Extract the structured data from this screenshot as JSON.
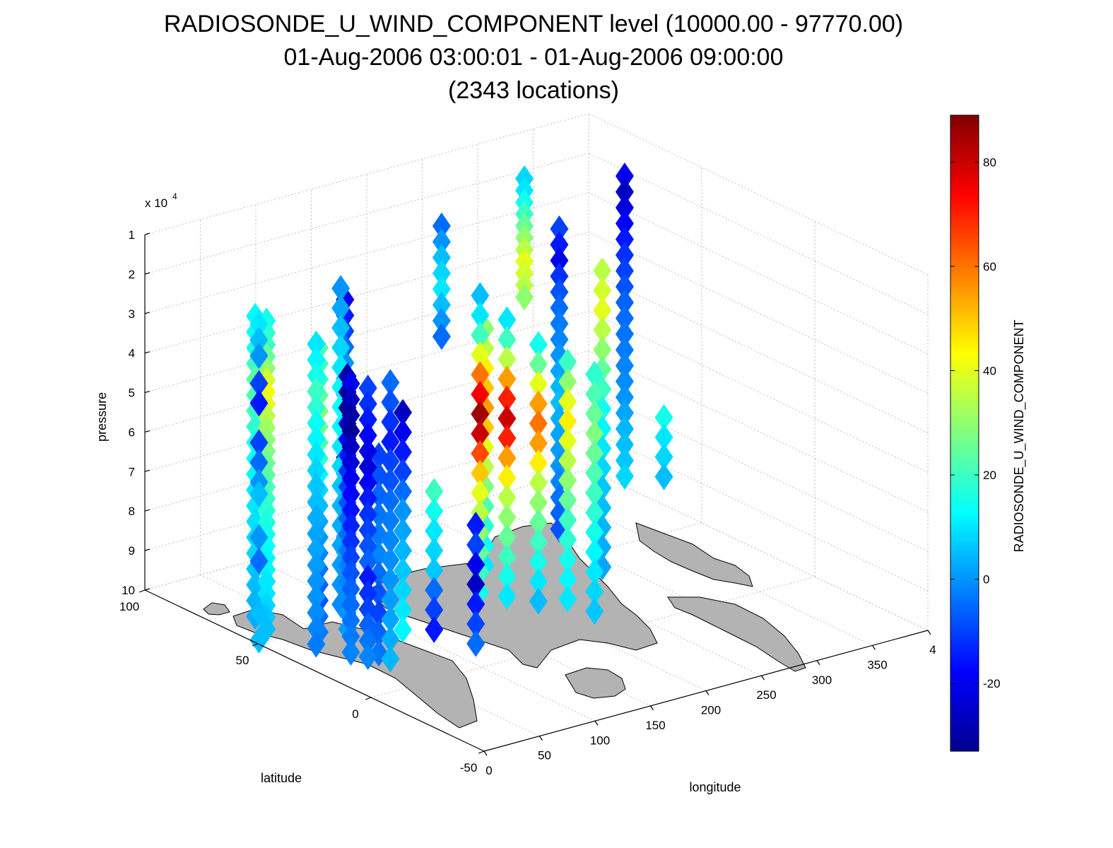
{
  "chart_data": {
    "type": "scatter",
    "title": "RADIOSONDE_U_WIND_COMPONENT level (10000.00 - 97770.00)",
    "subtitle": "01-Aug-2006 03:00:01 - 01-Aug-2006 09:00:00",
    "subtitle2": "(2343 locations)",
    "xlabel": "longitude",
    "ylabel": "latitude",
    "zlabel": "pressure",
    "z_multiplier": "x 10",
    "z_multiplier_exp": "4",
    "colorbar_label": "RADIOSONDE_U_WIND_COMPONENT",
    "colormap": "jet",
    "clim": [
      -33,
      89
    ],
    "xlim": [
      0,
      400
    ],
    "ylim": [
      -50,
      100
    ],
    "zlim": [
      1,
      10
    ],
    "z_reversed": true,
    "x_ticks": [
      "0",
      "50",
      "100",
      "150",
      "200",
      "250",
      "300",
      "350",
      "4"
    ],
    "y_ticks": [
      "-50",
      "0",
      "50",
      "100"
    ],
    "z_ticks": [
      "1",
      "2",
      "3",
      "4",
      "5",
      "6",
      "7",
      "8",
      "9",
      "10"
    ],
    "colorbar_ticks": [
      "-20",
      "0",
      "20",
      "40",
      "60",
      "80"
    ],
    "grid": true,
    "marker": "diamond",
    "stations": [
      {
        "lon": 5,
        "lat": 52,
        "p": [
          2,
          2.4,
          2.8,
          3.5,
          4,
          5,
          5.5,
          6,
          6.3,
          7.4,
          8,
          9.3,
          10
        ],
        "u": [
          10,
          5,
          0,
          -10,
          -15,
          -10,
          -5,
          0,
          5,
          0,
          -5,
          5,
          5
        ]
      },
      {
        "lon": 18,
        "lat": 55,
        "p": [
          2.1,
          2.4,
          2.7,
          3,
          3.3,
          3.6,
          3.9,
          4.2,
          4.5,
          4.8,
          5.1,
          5.4,
          5.7,
          6,
          6.3,
          6.6,
          6.9,
          7.2,
          7.5,
          7.8,
          8.1,
          8.4,
          8.7,
          9,
          9.3,
          9.6,
          9.9
        ],
        "u": [
          15,
          18,
          20,
          25,
          30,
          38,
          42,
          40,
          35,
          32,
          30,
          28,
          26,
          24,
          22,
          20,
          18,
          16,
          15,
          14,
          12,
          12,
          10,
          10,
          8,
          6,
          5
        ]
      },
      {
        "lon": 22,
        "lat": 62,
        "p": [
          2.2,
          2.6,
          3,
          3.4,
          3.8,
          4.2,
          4.6,
          5,
          5.4,
          5.8,
          6.2,
          6.6,
          7,
          7.4,
          7.8,
          8.2,
          8.6,
          9,
          9.4,
          9.8
        ],
        "u": [
          12,
          14,
          16,
          20,
          24,
          22,
          20,
          18,
          16,
          14,
          12,
          10,
          10,
          9,
          8,
          8,
          6,
          5,
          4,
          3
        ]
      },
      {
        "lon": 28,
        "lat": 38,
        "p": [
          2.3,
          2.7,
          3.1,
          3.5,
          3.9,
          4.3,
          4.7,
          5.1,
          5.5,
          5.9,
          6.3,
          6.7,
          7.1,
          7.5,
          7.9,
          8.3,
          8.7,
          9.1,
          9.5,
          9.9
        ],
        "u": [
          10,
          12,
          15,
          20,
          18,
          14,
          12,
          10,
          8,
          6,
          5,
          3,
          2,
          2,
          1,
          0,
          0,
          -1,
          -2,
          -3
        ]
      },
      {
        "lon": 35,
        "lat": 40,
        "p": [
          2.5,
          2.9,
          3.3,
          3.7,
          4.1,
          4.5,
          4.9,
          5.3,
          5.7,
          6.1,
          6.5,
          6.9,
          7.3,
          7.7,
          8.1,
          8.5,
          8.9,
          9.3,
          9.7
        ],
        "u": [
          22,
          20,
          18,
          24,
          28,
          26,
          22,
          18,
          12,
          8,
          5,
          2,
          0,
          -2,
          -4,
          -6,
          -8,
          -5,
          -3
        ]
      },
      {
        "lon": 38,
        "lat": 20,
        "p": [
          3,
          3.4,
          3.8,
          4.2,
          4.6,
          5,
          5.4,
          5.8,
          6.2,
          6.6,
          7,
          7.4,
          7.8,
          8.2,
          8.6,
          9,
          9.4,
          9.8
        ],
        "u": [
          -10,
          -12,
          -15,
          -18,
          -20,
          -22,
          -18,
          -15,
          -12,
          -10,
          -8,
          -6,
          -15,
          -12,
          -10,
          -6,
          -4,
          -2
        ]
      },
      {
        "lon": 43,
        "lat": 30,
        "p": [
          3.2,
          3.6,
          4,
          4.4,
          4.8,
          5.2,
          5.6,
          6,
          6.4,
          6.8,
          7.2,
          7.6,
          8,
          8.4,
          8.8,
          9.2,
          9.6,
          10
        ],
        "u": [
          -20,
          -25,
          -28,
          -30,
          -25,
          -22,
          -20,
          -18,
          -16,
          -14,
          -12,
          -10,
          -8,
          -6,
          -5,
          -4,
          -3,
          -2
        ]
      },
      {
        "lon": 50,
        "lat": 35,
        "p": [
          3.2,
          3.6,
          4,
          4.4,
          4.8,
          5.2,
          5.6,
          6,
          6.4,
          6.8,
          7.2,
          7.6,
          8,
          8.4,
          8.8,
          9.2,
          9.6
        ],
        "u": [
          -28,
          -30,
          -32,
          -25,
          -20,
          -15,
          -12,
          -10,
          -8,
          -6,
          -5,
          -4,
          -3,
          -2,
          -1,
          0,
          1
        ]
      },
      {
        "lon": 48,
        "lat": 15,
        "p": [
          2.8,
          3.3,
          3.8,
          4.3,
          4.8,
          5.3,
          5.8,
          6.3,
          6.8,
          7.3,
          7.8,
          8.3,
          8.8,
          9.3,
          9.8
        ],
        "u": [
          -5,
          -8,
          -12,
          -15,
          -10,
          -8,
          -5,
          -3,
          -2,
          -1,
          0,
          1,
          2,
          3,
          4
        ]
      },
      {
        "lon": 58,
        "lat": 25,
        "p": [
          5,
          5.5,
          6,
          6.5,
          7,
          7.5,
          8,
          8.5,
          9,
          9.5,
          10
        ],
        "u": [
          -10,
          -8,
          -6,
          -4,
          -3,
          -2,
          -5,
          -8,
          -10,
          -6,
          -4
        ]
      },
      {
        "lon": 95,
        "lat": 60,
        "p": [
          2,
          2.5,
          3,
          3.5,
          4,
          4.5,
          5,
          5.5,
          6,
          6.5,
          7,
          7.5,
          8,
          8.5,
          9,
          9.5,
          10
        ],
        "u": [
          0,
          2,
          5,
          8,
          10,
          12,
          14,
          12,
          10,
          8,
          6,
          4,
          3,
          2,
          1,
          0,
          -1
        ]
      },
      {
        "lon": 103,
        "lat": 62,
        "p": [
          2.4,
          2.8,
          3.2,
          3.6,
          4,
          4.4,
          4.8,
          5.2,
          5.6,
          6,
          6.4,
          6.8,
          7.2,
          7.6,
          8,
          8.4,
          8.8,
          9.2,
          9.6
        ],
        "u": [
          -20,
          -15,
          -10,
          -5,
          0,
          5,
          -5,
          -10,
          -15,
          -20,
          -25,
          -10,
          -5,
          0,
          5,
          3,
          2,
          1,
          0
        ]
      },
      {
        "lon": 100,
        "lat": 35,
        "p": [
          4.5,
          5,
          5.5,
          6,
          6.5,
          7,
          7.5,
          8,
          8.5,
          9,
          9.5,
          10
        ],
        "u": [
          -25,
          -20,
          -15,
          -10,
          -5,
          0,
          2,
          4,
          6,
          8,
          10,
          12
        ]
      },
      {
        "lon": 118,
        "lat": 30,
        "p": [
          6.5,
          7,
          7.5,
          8,
          8.5,
          9,
          9.5,
          10
        ],
        "u": [
          20,
          15,
          10,
          8,
          6,
          -5,
          -10,
          -15
        ]
      },
      {
        "lon": 125,
        "lat": 15,
        "p": [
          7,
          7.5,
          8,
          8.5,
          9,
          9.5,
          10
        ],
        "u": [
          -15,
          -10,
          -20,
          -25,
          -15,
          -10,
          -5
        ]
      },
      {
        "lon": 190,
        "lat": 62,
        "p": [
          1.2,
          1.6,
          2,
          2.4,
          2.8,
          3.2,
          3.6,
          4
        ],
        "u": [
          -5,
          0,
          5,
          8,
          10,
          5,
          0,
          -5
        ]
      },
      {
        "lon": 190,
        "lat": 45,
        "p": [
          2.5,
          3,
          3.5,
          4,
          4.5,
          5,
          5.5,
          6,
          6.5,
          7,
          7.5,
          8,
          8.5,
          9,
          9.5,
          10
        ],
        "u": [
          5,
          10,
          20,
          40,
          60,
          75,
          85,
          80,
          65,
          50,
          40,
          35,
          30,
          25,
          20,
          15
        ]
      },
      {
        "lon": 200,
        "lat": 38,
        "p": [
          3,
          3.5,
          4,
          4.5,
          5,
          5.5,
          6,
          6.5,
          7,
          7.5,
          8,
          8.5,
          9,
          9.5,
          10
        ],
        "u": [
          10,
          20,
          35,
          55,
          70,
          80,
          70,
          55,
          45,
          35,
          30,
          25,
          20,
          15,
          10
        ]
      },
      {
        "lon": 212,
        "lat": 30,
        "p": [
          3.5,
          4,
          4.5,
          5,
          5.5,
          6,
          6.5,
          7,
          7.5,
          8,
          8.5,
          9,
          9.5,
          10
        ],
        "u": [
          15,
          25,
          40,
          55,
          60,
          55,
          45,
          35,
          30,
          25,
          20,
          15,
          10,
          5
        ]
      },
      {
        "lon": 222,
        "lat": 22,
        "p": [
          3.8,
          4.3,
          4.8,
          5.3,
          5.8,
          6.3,
          6.8,
          7.3,
          7.8,
          8.3,
          8.8,
          9.3,
          9.8
        ],
        "u": [
          20,
          30,
          40,
          45,
          40,
          35,
          30,
          25,
          20,
          18,
          15,
          12,
          10
        ]
      },
      {
        "lon": 232,
        "lat": 15,
        "p": [
          4,
          4.5,
          5,
          5.5,
          6,
          6.5,
          7,
          7.5,
          8,
          8.5,
          9,
          9.5,
          10
        ],
        "u": [
          18,
          22,
          25,
          28,
          25,
          22,
          20,
          18,
          15,
          12,
          10,
          8,
          6
        ]
      },
      {
        "lon": 215,
        "lat": 55,
        "p": [
          3.8,
          4.3,
          4.8,
          5.3,
          5.8,
          6.3,
          6.8,
          7.3,
          7.8,
          8.3,
          8.8,
          9.3,
          9.8
        ],
        "u": [
          30,
          35,
          45,
          50,
          55,
          50,
          40,
          35,
          28,
          22,
          18,
          14,
          10
        ]
      },
      {
        "lon": 285,
        "lat": 72,
        "p": [
          1,
          1.3,
          1.6,
          1.9,
          2.2,
          2.5,
          2.8,
          3.1,
          3.4,
          3.7,
          4
        ],
        "u": [
          8,
          10,
          15,
          20,
          25,
          30,
          35,
          40,
          38,
          35,
          30
        ]
      },
      {
        "lon": 292,
        "lat": 60,
        "p": [
          2,
          2.4,
          2.8,
          3.2,
          3.6,
          4,
          4.4,
          4.8,
          5.2,
          5.6,
          6,
          6.4,
          6.8,
          7.2,
          7.6,
          8,
          8.4,
          8.8,
          9.2,
          9.6
        ],
        "u": [
          -10,
          -15,
          -20,
          -12,
          -8,
          -5,
          -3,
          -2,
          0,
          2,
          4,
          5,
          3,
          2,
          1,
          0,
          -2,
          -4,
          -6,
          -8
        ]
      },
      {
        "lon": 290,
        "lat": 40,
        "p": [
          2.5,
          3,
          3.5,
          4,
          4.5,
          5,
          5.5,
          6,
          6.5,
          7,
          7.5,
          8,
          8.5,
          9,
          9.5,
          10
        ],
        "u": [
          35,
          38,
          40,
          35,
          30,
          25,
          20,
          15,
          12,
          10,
          8,
          6,
          5,
          4,
          3,
          2
        ]
      },
      {
        "lon": 315,
        "lat": 25,
        "p": [
          6,
          6.5,
          7,
          7.5
        ],
        "u": [
          15,
          10,
          8,
          5
        ]
      },
      {
        "lon": 355,
        "lat": 62,
        "p": [
          1.2,
          1.6,
          2,
          2.4,
          2.8,
          3.2,
          3.6,
          4,
          4.4,
          4.8,
          5.2,
          5.6,
          6,
          6.4,
          6.8,
          7.2,
          7.6,
          8,
          8.4,
          8.8
        ],
        "u": [
          -20,
          -25,
          -22,
          -18,
          -15,
          -12,
          -10,
          -8,
          -6,
          -5,
          -4,
          -3,
          -2,
          -1,
          0,
          2,
          4,
          5,
          6,
          8
        ]
      }
    ]
  }
}
